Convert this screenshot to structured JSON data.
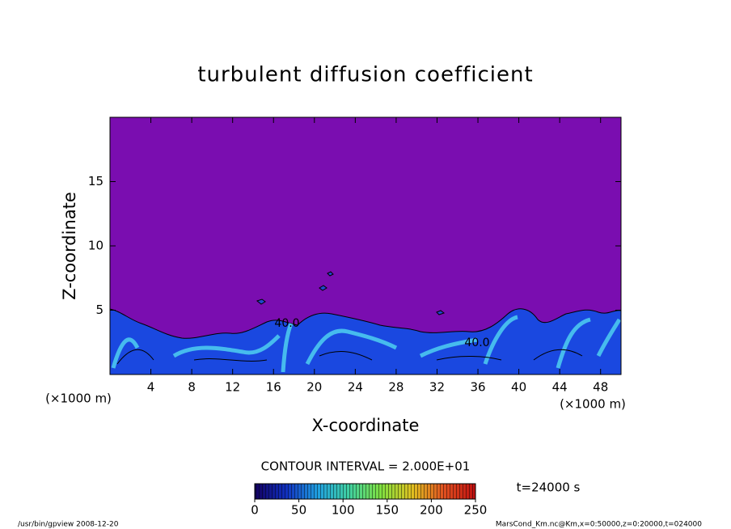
{
  "chart_data": {
    "type": "contour",
    "title": "turbulent diffusion coefficient",
    "xlabel": "X-coordinate",
    "ylabel": "Z-coordinate",
    "x_unit": "(×1000 m)",
    "y_unit": "(×1000 m)",
    "xlim": [
      0,
      50
    ],
    "xticks": [
      4,
      8,
      12,
      16,
      20,
      24,
      28,
      32,
      36,
      40,
      44,
      48
    ],
    "ylim": [
      0,
      20
    ],
    "yticks": [
      5,
      10,
      15
    ],
    "background_color": "#7a0db0",
    "contour_labels": [
      "40.0",
      "40.0"
    ],
    "contour_interval": "CONTOUR INTERVAL = 2.000E+01",
    "time_label": "t=24000 s",
    "footer_left": "/usr/bin/gpview   2008-12-20",
    "footer_right": "MarsCond_Km.nc@Km,x=0:50000,z=0:20000,t=024000",
    "colorbar": {
      "range": [
        0,
        250
      ],
      "ticks": [
        0,
        50,
        100,
        150,
        200,
        250
      ],
      "colors": [
        "#120060",
        "#1030c0",
        "#20a0e0",
        "#40d0a0",
        "#80e040",
        "#e0c020",
        "#e05020",
        "#c01010"
      ]
    }
  }
}
